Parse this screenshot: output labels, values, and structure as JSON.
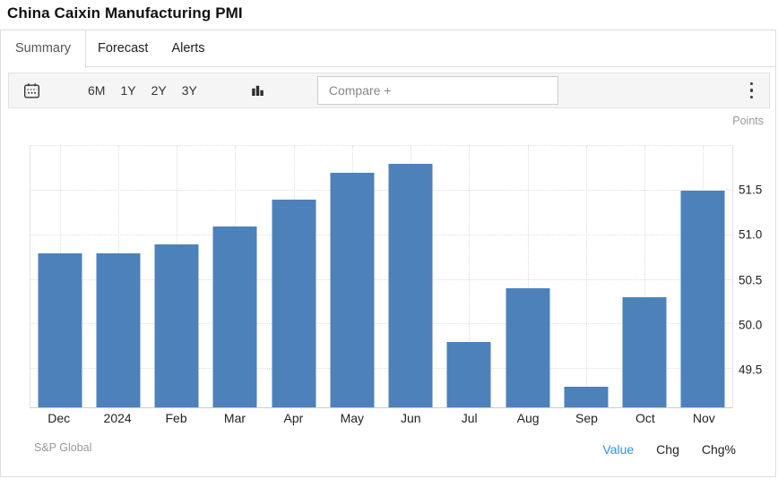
{
  "header": {
    "title": "China Caixin Manufacturing PMI"
  },
  "tabs": [
    {
      "label": "Summary",
      "active": true
    },
    {
      "label": "Forecast",
      "active": false
    },
    {
      "label": "Alerts",
      "active": false
    }
  ],
  "toolbar": {
    "ranges": [
      "6M",
      "1Y",
      "2Y",
      "3Y"
    ],
    "compare_placeholder": "Compare +",
    "icons": [
      "calendar-icon",
      "column-chart-icon",
      "kebab-menu-icon"
    ]
  },
  "chart_data": {
    "type": "bar",
    "title": "China Caixin Manufacturing PMI",
    "unit_label": "Points",
    "categories": [
      "Dec",
      "2024",
      "Feb",
      "Mar",
      "Apr",
      "May",
      "Jun",
      "Jul",
      "Aug",
      "Sep",
      "Oct",
      "Nov"
    ],
    "values": [
      50.8,
      50.8,
      50.9,
      51.1,
      51.4,
      51.7,
      51.8,
      49.8,
      50.4,
      49.3,
      50.3,
      51.5
    ],
    "ytick_labels": [
      "49.5",
      "50.0",
      "50.5",
      "51.0",
      "51.5"
    ],
    "ytick_values": [
      49.5,
      50.0,
      50.5,
      51.0,
      51.5
    ],
    "ylim": [
      49.07,
      52.0
    ],
    "xlabel": "",
    "ylabel": "Points",
    "grid": "dotted",
    "legend": "none",
    "bar_color": "#4d81ba"
  },
  "footer": {
    "source": "S&P Global",
    "links": [
      {
        "label": "Value",
        "active": true
      },
      {
        "label": "Chg",
        "active": false
      },
      {
        "label": "Chg%",
        "active": false
      }
    ]
  },
  "colors": {
    "accent": "#2e90f0",
    "bar": "#4d81ba",
    "toolbar_bg": "#f5f5f5"
  }
}
